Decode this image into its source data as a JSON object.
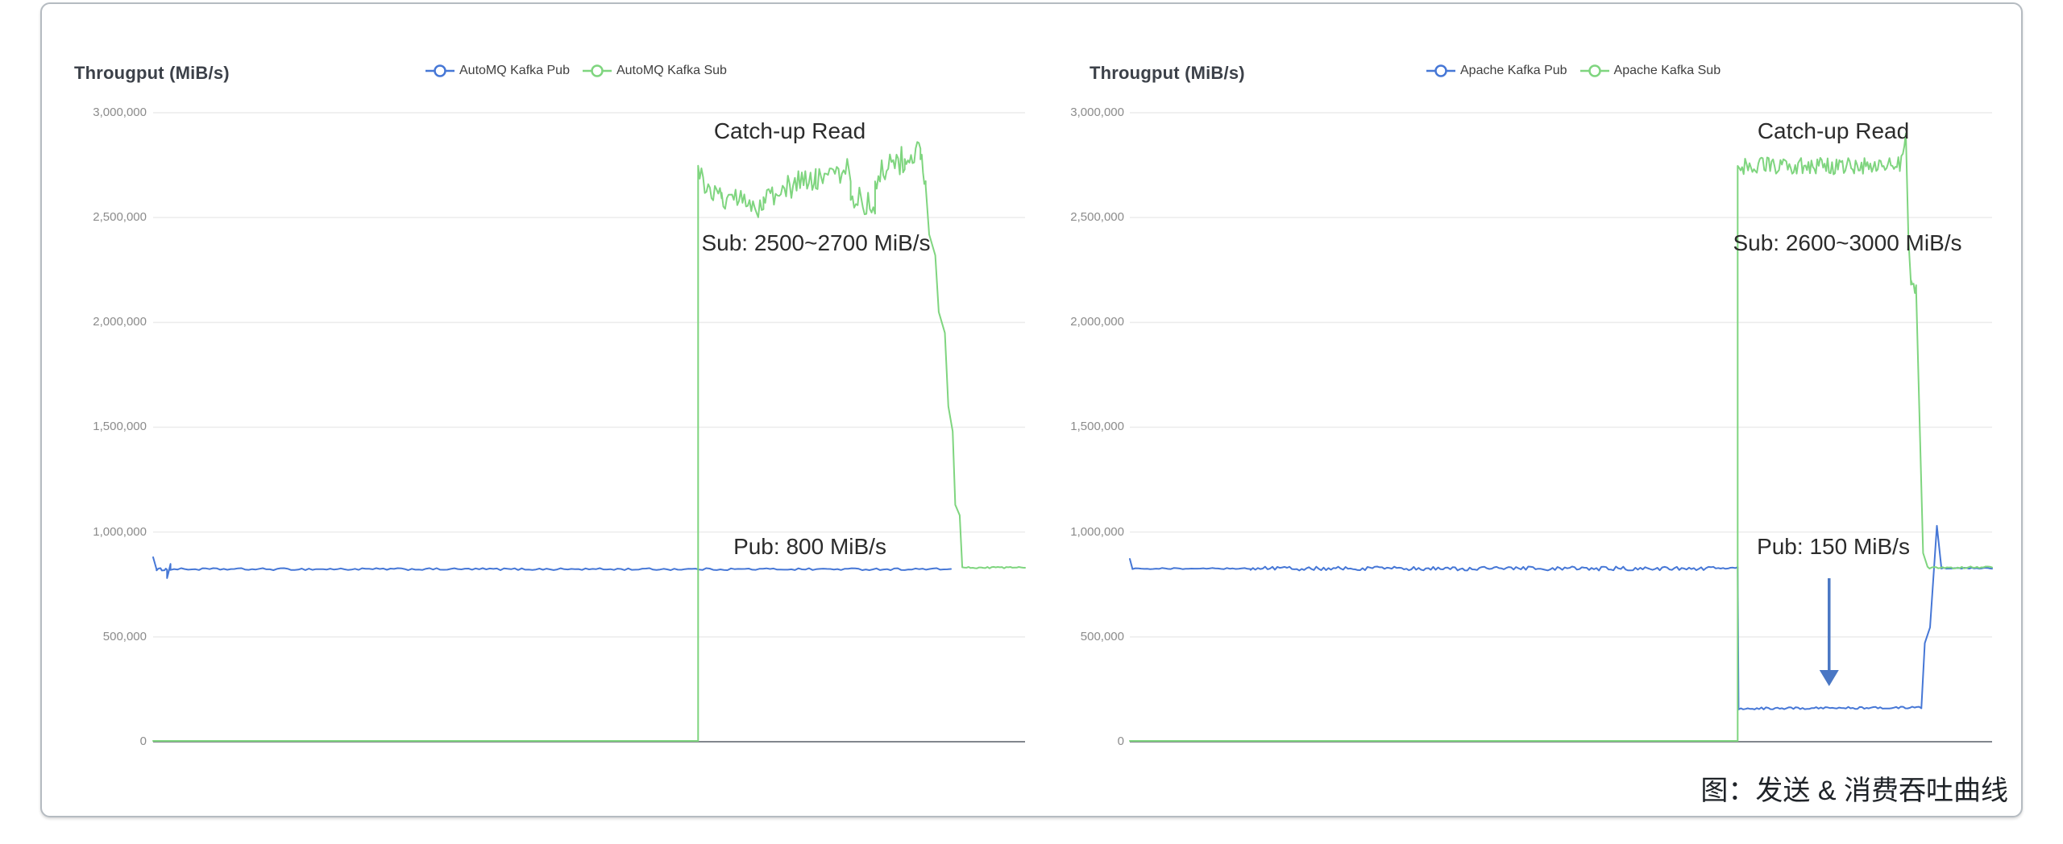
{
  "page": {
    "caption": "图：发送 & 消费吞吐曲线"
  },
  "colors": {
    "pub_blue": "#4677d6",
    "sub_green": "#7fd57f",
    "grid": "#ececec",
    "axis": "#82878d",
    "tick_label": "#8b8b8b",
    "panel_border": "#b5bbc1",
    "arrow_blue": "#4a77c4",
    "annotation_text": "#2b2b2b"
  },
  "chart_data": [
    {
      "type": "line",
      "title": "Througput (MiB/s)",
      "ylabel": "Throughput (MiB/s)",
      "ylim": [
        0,
        3000000
      ],
      "grid": true,
      "legend_position": "top-center",
      "ytick_values": [
        3000000,
        2500000,
        2000000,
        1500000,
        1000000,
        500000,
        0
      ],
      "ytick_labels": [
        "3,000,000",
        "2,500,000",
        "2,000,000",
        "1,500,000",
        "1,000,000",
        "500,000",
        "0"
      ],
      "legend": [
        {
          "name": "AutoMQ Kafka Pub",
          "color": "#4677d6"
        },
        {
          "name": "AutoMQ Kafka Sub",
          "color": "#7fd57f"
        }
      ],
      "annotations": [
        {
          "id": "catchup",
          "text": "Catch-up Read"
        },
        {
          "id": "sub-rate",
          "text": "Sub: 2500~2700 MiB/s"
        },
        {
          "id": "pub-rate",
          "text": "Pub: 800 MiB/s"
        }
      ],
      "series": [
        {
          "name": "AutoMQ Kafka Pub",
          "color": "#4677d6",
          "summary": "steady ~830,000 (800 MiB/s) across whole run",
          "segments": [
            {
              "x0": 0.0,
              "x1": 0.0,
              "y0": 880000,
              "y1": 880000
            },
            {
              "x0": 0.0,
              "x1": 0.004,
              "y0": 880000,
              "y1": 822000
            },
            {
              "x0": 0.004,
              "x1": 0.016,
              "y0": 822000,
              "y1": 822000,
              "noise": 6000,
              "steps": 8
            },
            {
              "x0": 0.016,
              "x1": 0.02,
              "y0": 780000,
              "y1": 848000,
              "steps": 3
            },
            {
              "x0": 0.02,
              "x1": 0.915,
              "y0": 823000,
              "y1": 823000,
              "noise": 5000,
              "steps": 220
            }
          ]
        },
        {
          "name": "AutoMQ Kafka Sub",
          "color": "#7fd57f",
          "summary": "0 until catch-up read starts; 2,500,000~2,800,000 during catch-up; settles at ~830,000 after",
          "segments": [
            {
              "x0": 0.0,
              "x1": 0.625,
              "y0": 4000,
              "y1": 4000
            },
            {
              "x0": 0.625,
              "x1": 0.625,
              "y0": 4000,
              "y1": 2700000
            },
            {
              "x0": 0.625,
              "x1": 0.652,
              "y0": 2700000,
              "y1": 2600000,
              "noise": 70000,
              "steps": 14
            },
            {
              "x0": 0.652,
              "x1": 0.7,
              "y0": 2580000,
              "y1": 2560000,
              "noise": 62000,
              "steps": 24
            },
            {
              "x0": 0.7,
              "x1": 0.76,
              "y0": 2600000,
              "y1": 2700000,
              "noise": 65000,
              "steps": 30
            },
            {
              "x0": 0.76,
              "x1": 0.8,
              "y0": 2700000,
              "y1": 2730000,
              "noise": 70000,
              "steps": 20
            },
            {
              "x0": 0.8,
              "x1": 0.828,
              "y0": 2620000,
              "y1": 2520000,
              "noise": 75000,
              "steps": 14
            },
            {
              "x0": 0.828,
              "x1": 0.862,
              "y0": 2700000,
              "y1": 2780000,
              "noise": 70000,
              "steps": 18
            },
            {
              "x0": 0.862,
              "x1": 0.88,
              "y0": 2780000,
              "y1": 2820000,
              "noise": 60000,
              "steps": 10
            },
            {
              "x0": 0.88,
              "x1": 0.886,
              "y0": 2800000,
              "y1": 2650000,
              "noise": 40000,
              "steps": 4
            },
            {
              "x0": 0.886,
              "x1": 0.89,
              "y0": 2650000,
              "y1": 2420000
            },
            {
              "x0": 0.89,
              "x1": 0.897,
              "y0": 2420000,
              "y1": 2320000
            },
            {
              "x0": 0.897,
              "x1": 0.901,
              "y0": 2320000,
              "y1": 2050000
            },
            {
              "x0": 0.901,
              "x1": 0.908,
              "y0": 2050000,
              "y1": 1950000
            },
            {
              "x0": 0.908,
              "x1": 0.912,
              "y0": 1950000,
              "y1": 1600000
            },
            {
              "x0": 0.912,
              "x1": 0.917,
              "y0": 1600000,
              "y1": 1480000
            },
            {
              "x0": 0.917,
              "x1": 0.92,
              "y0": 1480000,
              "y1": 1130000
            },
            {
              "x0": 0.92,
              "x1": 0.925,
              "y0": 1130000,
              "y1": 1080000
            },
            {
              "x0": 0.925,
              "x1": 0.928,
              "y0": 1080000,
              "y1": 832000
            },
            {
              "x0": 0.928,
              "x1": 1.0,
              "y0": 830000,
              "y1": 830000,
              "noise": 4000,
              "steps": 30
            }
          ]
        }
      ]
    },
    {
      "type": "line",
      "title": "Througput (MiB/s)",
      "ylabel": "Throughput (MiB/s)",
      "ylim": [
        0,
        3000000
      ],
      "grid": true,
      "legend_position": "top-center",
      "ytick_values": [
        3000000,
        2500000,
        2000000,
        1500000,
        1000000,
        500000,
        0
      ],
      "ytick_labels": [
        "3,000,000",
        "2,500,000",
        "2,000,000",
        "1,500,000",
        "1,000,000",
        "500,000",
        "0"
      ],
      "legend": [
        {
          "name": "Apache Kafka Pub",
          "color": "#4677d6"
        },
        {
          "name": "Apache Kafka Sub",
          "color": "#7fd57f"
        }
      ],
      "annotations": [
        {
          "id": "catchup",
          "text": "Catch-up Read"
        },
        {
          "id": "sub-rate",
          "text": "Sub: 2600~3000 MiB/s"
        },
        {
          "id": "pub-rate",
          "text": "Pub: 150 MiB/s"
        },
        {
          "id": "arrow-down",
          "text": "",
          "shape": "down-arrow",
          "color": "#4a77c4"
        }
      ],
      "arrow": {
        "x_frac": 0.811,
        "y_from": 780000,
        "y_to": 265000,
        "color": "#4a77c4"
      },
      "series": [
        {
          "name": "Apache Kafka Pub",
          "color": "#4677d6",
          "summary": "steady ~830,000 (800 MiB/s); drops to ~150,000 (150 MiB/s) during catch-up read; recovers with brief spike to ~1,030,000 then back to ~830,000",
          "segments": [
            {
              "x0": 0.0,
              "x1": 0.0,
              "y0": 872000,
              "y1": 872000
            },
            {
              "x0": 0.0,
              "x1": 0.003,
              "y0": 872000,
              "y1": 826000
            },
            {
              "x0": 0.003,
              "x1": 0.14,
              "y0": 826000,
              "y1": 826000,
              "noise": 3000,
              "steps": 40
            },
            {
              "x0": 0.14,
              "x1": 0.705,
              "y0": 826000,
              "y1": 826000,
              "noise": 9500,
              "steps": 200
            },
            {
              "x0": 0.705,
              "x1": 0.706,
              "y0": 826000,
              "y1": 160000
            },
            {
              "x0": 0.706,
              "x1": 0.918,
              "y0": 158000,
              "y1": 163000,
              "noise": 5000,
              "steps": 80
            },
            {
              "x0": 0.918,
              "x1": 0.922,
              "y0": 163000,
              "y1": 470000
            },
            {
              "x0": 0.922,
              "x1": 0.928,
              "y0": 470000,
              "y1": 545000
            },
            {
              "x0": 0.928,
              "x1": 0.936,
              "y0": 545000,
              "y1": 1030000
            },
            {
              "x0": 0.936,
              "x1": 0.941,
              "y0": 1030000,
              "y1": 836000
            },
            {
              "x0": 0.941,
              "x1": 1.0,
              "y0": 828000,
              "y1": 828000,
              "noise": 3000,
              "steps": 20
            }
          ]
        },
        {
          "name": "Apache Kafka Sub",
          "color": "#7fd57f",
          "summary": "0 until catch-up read starts; 2,600,000~3,000,000 during catch-up (spike ~2,900,000 at end, step at ~2,150,000 on the way down); settles at ~830,000 after",
          "segments": [
            {
              "x0": 0.0,
              "x1": 0.705,
              "y0": 4000,
              "y1": 4000
            },
            {
              "x0": 0.705,
              "x1": 0.705,
              "y0": 4000,
              "y1": 2740000
            },
            {
              "x0": 0.705,
              "x1": 0.893,
              "y0": 2745000,
              "y1": 2750000,
              "noise": 42000,
              "steps": 110
            },
            {
              "x0": 0.893,
              "x1": 0.9,
              "y0": 2750000,
              "y1": 2900000,
              "noise": 30000,
              "steps": 4
            },
            {
              "x0": 0.9,
              "x1": 0.903,
              "y0": 2900000,
              "y1": 2400000
            },
            {
              "x0": 0.903,
              "x1": 0.906,
              "y0": 2400000,
              "y1": 2180000
            },
            {
              "x0": 0.906,
              "x1": 0.912,
              "y0": 2180000,
              "y1": 2150000,
              "noise": 28000,
              "steps": 4
            },
            {
              "x0": 0.912,
              "x1": 0.92,
              "y0": 2150000,
              "y1": 900000
            },
            {
              "x0": 0.92,
              "x1": 0.925,
              "y0": 900000,
              "y1": 836000
            },
            {
              "x0": 0.925,
              "x1": 1.0,
              "y0": 831000,
              "y1": 831000,
              "noise": 5000,
              "steps": 30
            }
          ]
        }
      ]
    }
  ]
}
